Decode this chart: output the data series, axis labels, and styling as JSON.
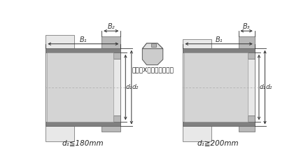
{
  "bg_color": "#ffffff",
  "part_color_main": "#d4d4d4",
  "part_color_light": "#e8e8e8",
  "part_color_dark": "#aaaaaa",
  "collar_color": "#b8b8b8",
  "dark_band": "#808080",
  "line_color": "#444444",
  "dim_color": "#333333",
  "text_color": "#222222",
  "label_left_bottom": "d₁≦180mm",
  "label_right_bottom": "d₁≧200mm",
  "label_center": "（記号Xの付いたもの）",
  "dim_B1": "B₁",
  "dim_B2": "B₂",
  "dim_B3": "B₃",
  "dim_d1": "d₁",
  "dim_d2": "d₂"
}
